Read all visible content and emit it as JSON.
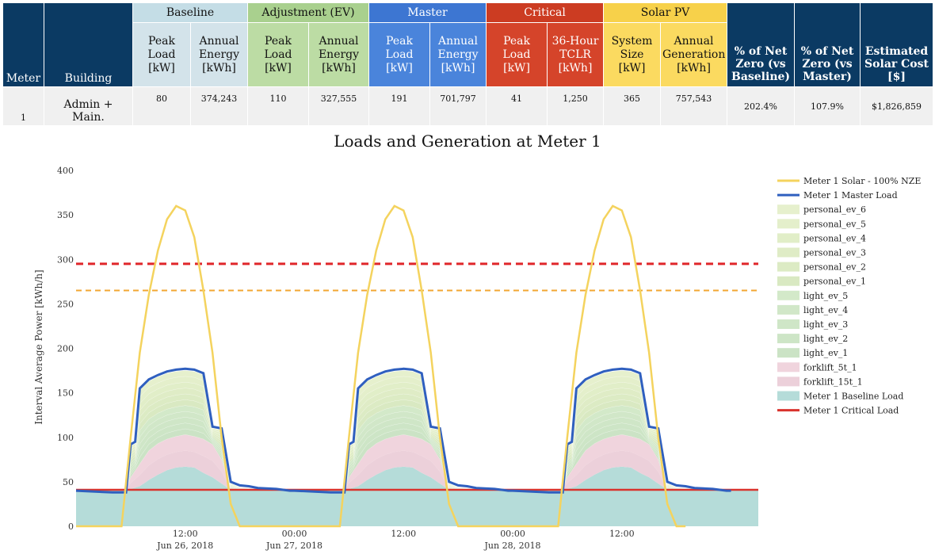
{
  "table": {
    "groups": {
      "baseline": "Baseline",
      "adjustment": "Adjustment (EV)",
      "master": "Master",
      "critical": "Critical",
      "solar": "Solar PV"
    },
    "headers": {
      "meter": "Meter",
      "building": "Building",
      "base_peak": "Peak Load [kW]",
      "base_energy": "Annual Energy [kWh]",
      "adj_peak": "Peak Load [kW]",
      "adj_energy": "Annual Energy [kWh]",
      "mas_peak": "Peak Load [kW]",
      "mas_energy": "Annual Energy [kWh]",
      "crit_peak": "Peak Load [kW]",
      "crit_tclr": "36-Hour TCLR [kWh]",
      "sol_size": "System Size [kW]",
      "sol_gen": "Annual Generation [kWh]",
      "nz_base": "% of Net Zero (vs Baseline)",
      "nz_master": "% of Net Zero (vs Master)",
      "cost": "Estimated Solar Cost [$]"
    },
    "row": {
      "meter": "1",
      "building": "Admin + Main.",
      "base_peak": "80",
      "base_energy": "374,243",
      "adj_peak": "110",
      "adj_energy": "327,555",
      "mas_peak": "191",
      "mas_energy": "701,797",
      "crit_peak": "41",
      "crit_tclr": "1,250",
      "sol_size": "365",
      "sol_gen": "757,543",
      "nz_base": "202.4%",
      "nz_master": "107.9%",
      "cost": "$1,826,859"
    }
  },
  "chart_data": {
    "type": "area",
    "title": "Loads and Generation at Meter 1",
    "ylabel": "Interval Average Power [kWh/h]",
    "xlabel": "",
    "ylim": [
      0,
      400
    ],
    "xlim_hours": [
      0,
      75
    ],
    "yticks": [
      0,
      50,
      100,
      150,
      200,
      250,
      300,
      350,
      400
    ],
    "xticks": [
      {
        "hour": 12,
        "label": "12:00",
        "sublabel": "Jun 26, 2018"
      },
      {
        "hour": 24,
        "label": "00:00",
        "sublabel": "Jun 27, 2018"
      },
      {
        "hour": 36,
        "label": "12:00",
        "sublabel": ""
      },
      {
        "hour": 48,
        "label": "00:00",
        "sublabel": "Jun 28, 2018"
      },
      {
        "hour": 60,
        "label": "12:00",
        "sublabel": ""
      }
    ],
    "grid": false,
    "legend_position": "right",
    "hlines": [
      {
        "value": 295,
        "color": "#e0262a",
        "style": "dashed"
      },
      {
        "value": 265,
        "color": "#f2a733",
        "style": "dashed"
      }
    ],
    "series": [
      {
        "name": "Meter 1 Solar - 100% NZE",
        "kind": "line",
        "color": "#f4d35e"
      },
      {
        "name": "Meter 1 Master Load",
        "kind": "line",
        "color": "#2f5fbf"
      },
      {
        "name": "personal_ev_6",
        "kind": "area",
        "color": "#e6f0cd"
      },
      {
        "name": "personal_ev_5",
        "kind": "area",
        "color": "#e4efcb"
      },
      {
        "name": "personal_ev_4",
        "kind": "area",
        "color": "#e1eec8"
      },
      {
        "name": "personal_ev_3",
        "kind": "area",
        "color": "#dfecc6"
      },
      {
        "name": "personal_ev_2",
        "kind": "area",
        "color": "#dcebc4"
      },
      {
        "name": "personal_ev_1",
        "kind": "area",
        "color": "#d9e9c2"
      },
      {
        "name": "light_ev_5",
        "kind": "area",
        "color": "#d3e9c9"
      },
      {
        "name": "light_ev_4",
        "kind": "area",
        "color": "#d1e7c8"
      },
      {
        "name": "light_ev_3",
        "kind": "area",
        "color": "#cfe6c7"
      },
      {
        "name": "light_ev_2",
        "kind": "area",
        "color": "#cde5c6"
      },
      {
        "name": "light_ev_1",
        "kind": "area",
        "color": "#cbe3c5"
      },
      {
        "name": "forklift_5t_1",
        "kind": "area",
        "color": "#f0d4dd"
      },
      {
        "name": "forklift_15t_1",
        "kind": "area",
        "color": "#ecd0da"
      },
      {
        "name": "Meter 1 Baseline Load",
        "kind": "area",
        "color": "#b5dcd9"
      },
      {
        "name": "Meter 1 Critical Load",
        "kind": "line",
        "color": "#d9332d"
      }
    ],
    "solar": {
      "times": [
        0,
        5,
        6,
        7,
        8,
        9,
        10,
        11,
        12,
        13,
        14,
        15,
        16,
        17,
        18,
        19
      ],
      "values": [
        0,
        0,
        100,
        195,
        260,
        310,
        345,
        360,
        355,
        325,
        265,
        195,
        100,
        25,
        0,
        0
      ],
      "period_hours": 24,
      "days": 3
    },
    "master_load": {
      "times": [
        0,
        4,
        5.5,
        6,
        6.5,
        7,
        8,
        9,
        10,
        11,
        12,
        13,
        14,
        15,
        16,
        17,
        18,
        19,
        20,
        22,
        23.5,
        24
      ],
      "values": [
        40,
        38,
        38,
        92,
        95,
        155,
        165,
        170,
        174,
        176,
        177,
        176,
        172,
        112,
        110,
        50,
        46,
        45,
        43,
        42,
        40,
        40
      ],
      "period_hours": 24,
      "days": 3
    },
    "baseline_load": {
      "times": [
        0,
        5.5,
        6,
        7,
        8,
        9,
        10,
        11,
        12,
        13,
        14,
        15,
        16,
        17,
        24
      ],
      "values": [
        41,
        41,
        42,
        45,
        52,
        58,
        63,
        66,
        67,
        66,
        60,
        55,
        48,
        41,
        41
      ],
      "period_hours": 24,
      "days": 3
    },
    "forklift_top": {
      "times": [
        0,
        5.5,
        6,
        7,
        8,
        9,
        10,
        11,
        12,
        13,
        14,
        15,
        16,
        17,
        24
      ],
      "values": [
        41,
        41,
        55,
        70,
        85,
        93,
        98,
        101,
        103,
        101,
        98,
        92,
        75,
        41,
        41
      ],
      "period_hours": 24,
      "days": 3
    },
    "critical_load": 41
  }
}
